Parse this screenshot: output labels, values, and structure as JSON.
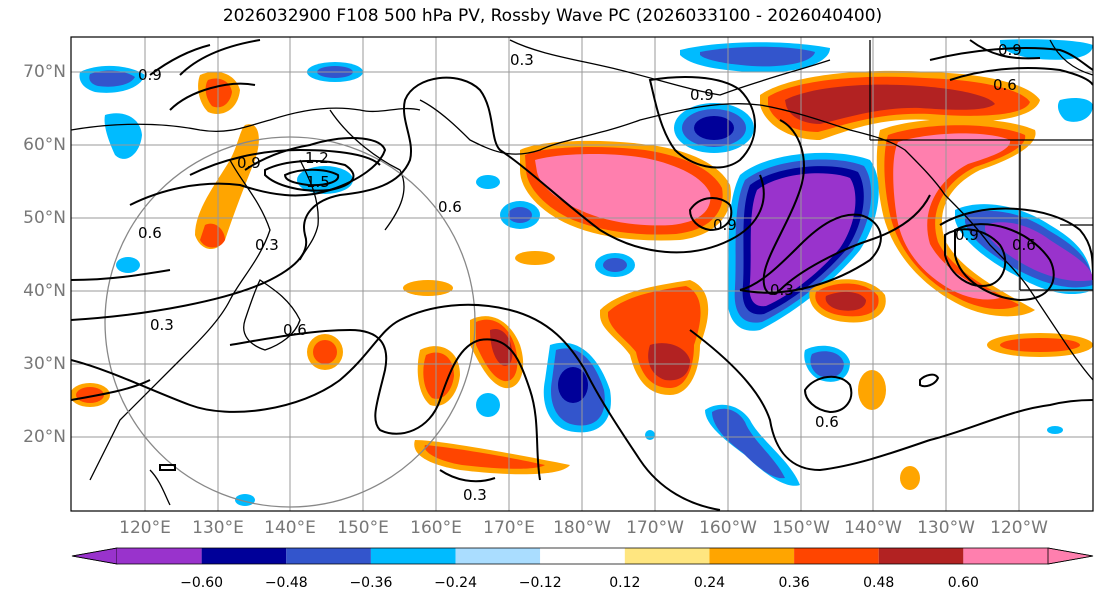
{
  "title": "2026032900 F108 500 hPa PV, Rossby Wave PC (2026033100 - 2026040400)",
  "lat_labels": [
    "70°N",
    "60°N",
    "50°N",
    "40°N",
    "30°N",
    "20°N"
  ],
  "lon_labels": [
    "120°E",
    "130°E",
    "140°E",
    "150°E",
    "160°E",
    "170°E",
    "180°W",
    "170°W",
    "160°W",
    "150°W",
    "140°W",
    "130°W",
    "120°W"
  ],
  "contour_labels": [
    "0.3",
    "0.3",
    "0.3",
    "0.3",
    "0.3",
    "0.6",
    "0.6",
    "0.6",
    "0.6",
    "0.6",
    "0.6",
    "0.9",
    "0.9",
    "0.9",
    "0.9",
    "0.9",
    "0.9",
    "1.2",
    "1.5"
  ],
  "colorbar": {
    "tick_labels": [
      "−0.60",
      "−0.48",
      "−0.36",
      "−0.24",
      "−0.12",
      "0.12",
      "0.24",
      "0.36",
      "0.48",
      "0.60"
    ],
    "colors": [
      "#9933cc",
      "#000099",
      "#3355cc",
      "#00bbff",
      "#aaddff",
      "#ffffff",
      "#ffe680",
      "#ffa500",
      "#ff4500",
      "#b22222",
      "#ff7fae"
    ]
  }
}
